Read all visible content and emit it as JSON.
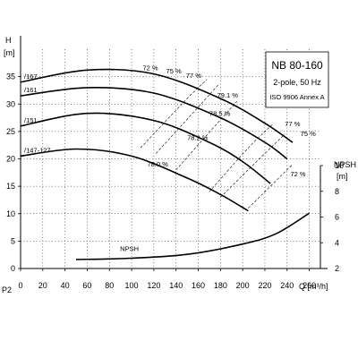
{
  "chart_data": {
    "type": "line",
    "title_box": {
      "model": "NB 80-160",
      "spec": "2-pole, 50 Hz",
      "standard": "ISO 9906 Annex A"
    },
    "y_left_label": "H",
    "y_left_unit": "[m]",
    "y_right_label": "NPSH",
    "y_right_unit": "[m]",
    "x_label": "Q [m³/h]",
    "p2_label": "P2",
    "x_range": [
      0,
      270
    ],
    "x_ticks": [
      0,
      20,
      40,
      60,
      80,
      100,
      120,
      140,
      160,
      180,
      200,
      220,
      240,
      260
    ],
    "y_left_range": [
      0,
      40
    ],
    "y_left_ticks": [
      0,
      5,
      10,
      15,
      20,
      25,
      30,
      35
    ],
    "y_right_range": [
      2,
      10
    ],
    "y_right_ticks": [
      2,
      4,
      6,
      8,
      10
    ],
    "series": [
      {
        "name": "/167",
        "points": [
          [
            0,
            34
          ],
          [
            60,
            36.2
          ],
          [
            120,
            35.5
          ],
          [
            180,
            31
          ],
          [
            220,
            26.5
          ],
          [
            245,
            23
          ]
        ]
      },
      {
        "name": "/161",
        "points": [
          [
            0,
            31.5
          ],
          [
            60,
            33
          ],
          [
            120,
            32
          ],
          [
            180,
            27.5
          ],
          [
            220,
            23
          ],
          [
            240,
            20
          ]
        ]
      },
      {
        "name": "/151",
        "points": [
          [
            0,
            26
          ],
          [
            60,
            28.3
          ],
          [
            120,
            27
          ],
          [
            170,
            23
          ],
          [
            200,
            19.5
          ],
          [
            225,
            15.5
          ]
        ]
      },
      {
        "name": "/147-127",
        "points": [
          [
            0,
            20.5
          ],
          [
            50,
            21.8
          ],
          [
            100,
            20.5
          ],
          [
            150,
            16.5
          ],
          [
            180,
            13.5
          ],
          [
            205,
            10.5
          ]
        ]
      }
    ],
    "npsh": {
      "name": "NPSH",
      "points": [
        [
          50,
          2.7
        ],
        [
          100,
          2.8
        ],
        [
          150,
          3.1
        ],
        [
          200,
          3.9
        ],
        [
          230,
          4.7
        ],
        [
          260,
          6.3
        ]
      ]
    },
    "efficiency_lines": [
      {
        "points": [
          [
            108,
            22
          ],
          [
            150,
            31
          ],
          [
            168,
            34.5
          ]
        ]
      },
      {
        "points": [
          [
            122,
            21
          ],
          [
            158,
            29
          ],
          [
            178,
            33.5
          ]
        ]
      },
      {
        "points": [
          [
            140,
            18
          ],
          [
            175,
            26
          ],
          [
            195,
            30.5
          ]
        ]
      },
      {
        "points": [
          [
            170,
            14
          ],
          [
            205,
            22
          ],
          [
            228,
            26.5
          ]
        ]
      },
      {
        "points": [
          [
            180,
            13
          ],
          [
            215,
            20
          ],
          [
            238,
            24.5
          ]
        ]
      },
      {
        "points": [
          [
            205,
            11
          ],
          [
            230,
            16
          ],
          [
            245,
            19
          ]
        ]
      }
    ],
    "efficiency_labels": [
      {
        "text": "72 %",
        "x": 110,
        "y": 36.2
      },
      {
        "text": "75 %",
        "x": 131,
        "y": 35.6
      },
      {
        "text": "77 %",
        "x": 149,
        "y": 34.8
      },
      {
        "text": "79.1 %",
        "x": 177,
        "y": 31.2
      },
      {
        "text": "78.5 %",
        "x": 170,
        "y": 27.8
      },
      {
        "text": "78.2 %",
        "x": 150,
        "y": 23.4
      },
      {
        "text": "78.0 %",
        "x": 114,
        "y": 18.6
      },
      {
        "text": "77 %",
        "x": 238,
        "y": 26.0
      },
      {
        "text": "75 %",
        "x": 252,
        "y": 24.2
      },
      {
        "text": "72 %",
        "x": 243,
        "y": 16.8
      }
    ]
  }
}
